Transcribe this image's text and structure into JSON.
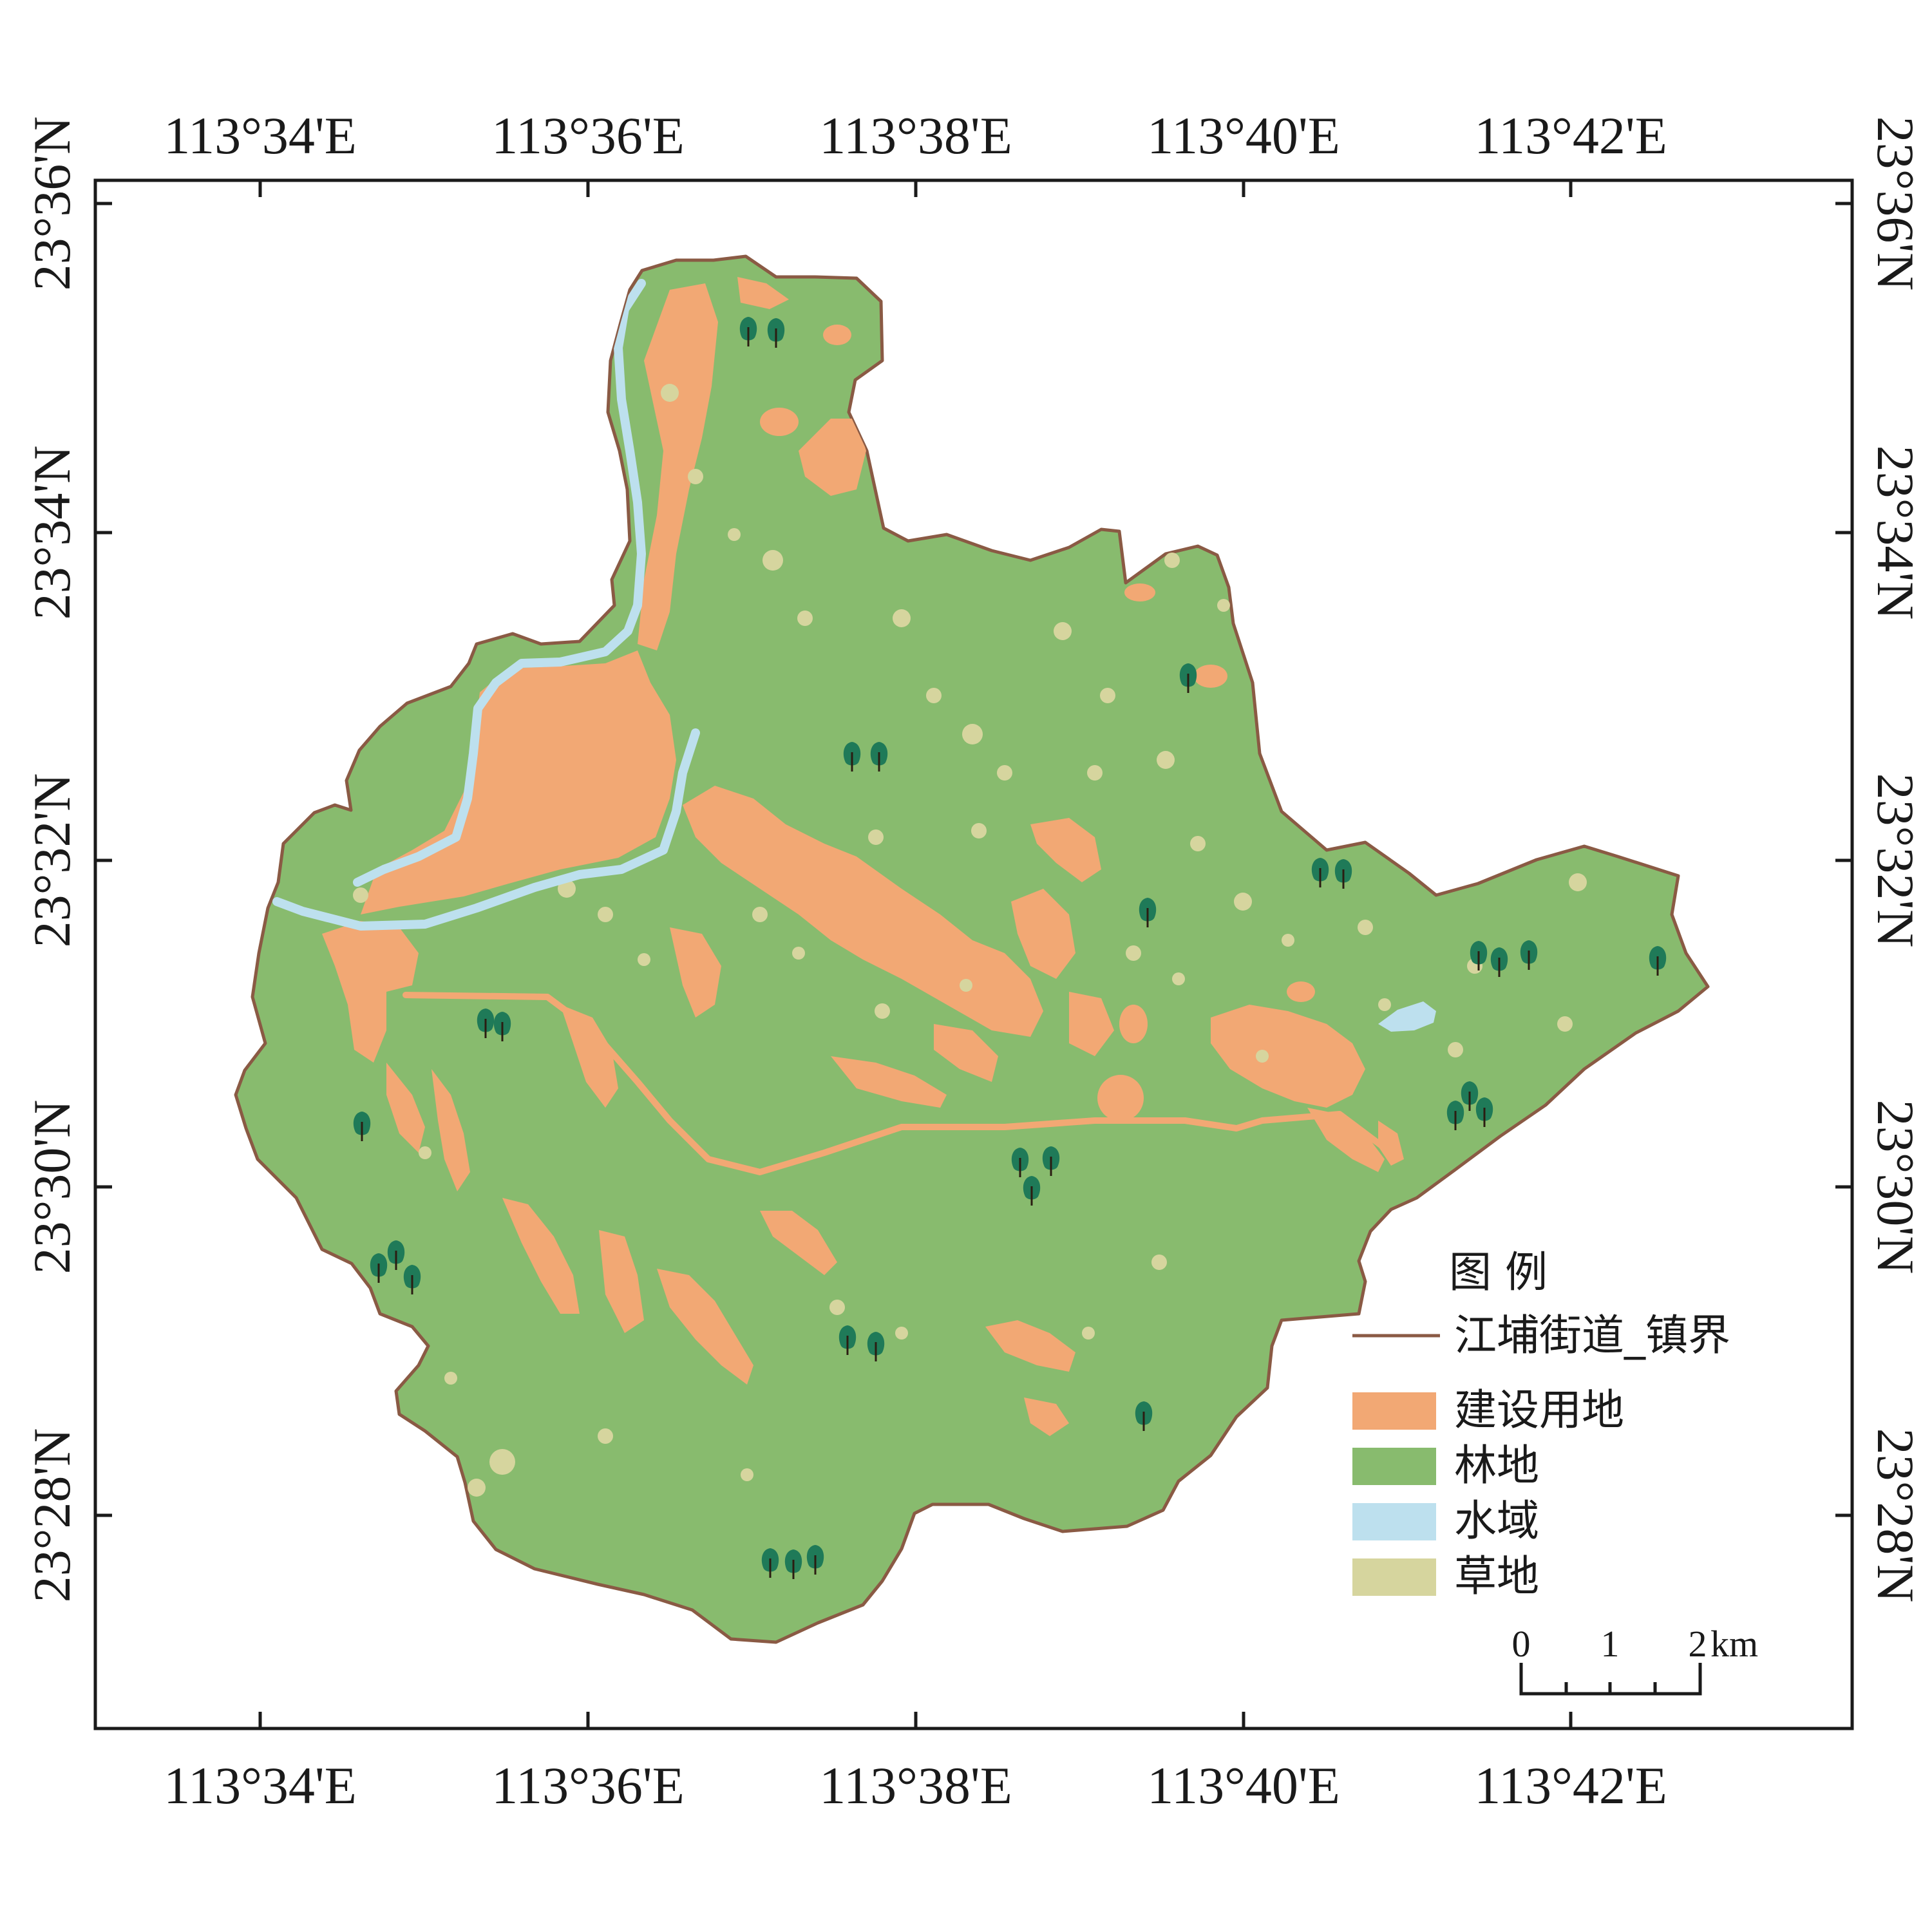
{
  "map": {
    "longitude_labels": [
      "113°34'E",
      "113°36'E",
      "113°38'E",
      "113°40'E",
      "113°42'E"
    ],
    "latitude_labels": [
      "23°36'N",
      "23°34'N",
      "23°32'N",
      "23°30'N",
      "23°28'N"
    ],
    "legend": {
      "title": "图 例",
      "boundary": {
        "label": "江埔街道_镇界",
        "color": "#8a5a44"
      },
      "classes": [
        {
          "label": "建设用地",
          "color": "#f2a874"
        },
        {
          "label": "林地",
          "color": "#88bb6e"
        },
        {
          "label": "水域",
          "color": "#bde0ee"
        },
        {
          "label": "草地",
          "color": "#d6d59e"
        }
      ]
    },
    "scale_bar": {
      "labels": [
        "0",
        "1",
        "2"
      ],
      "unit": "km"
    },
    "symbols": {
      "tree_icon": "tree-icon"
    }
  }
}
